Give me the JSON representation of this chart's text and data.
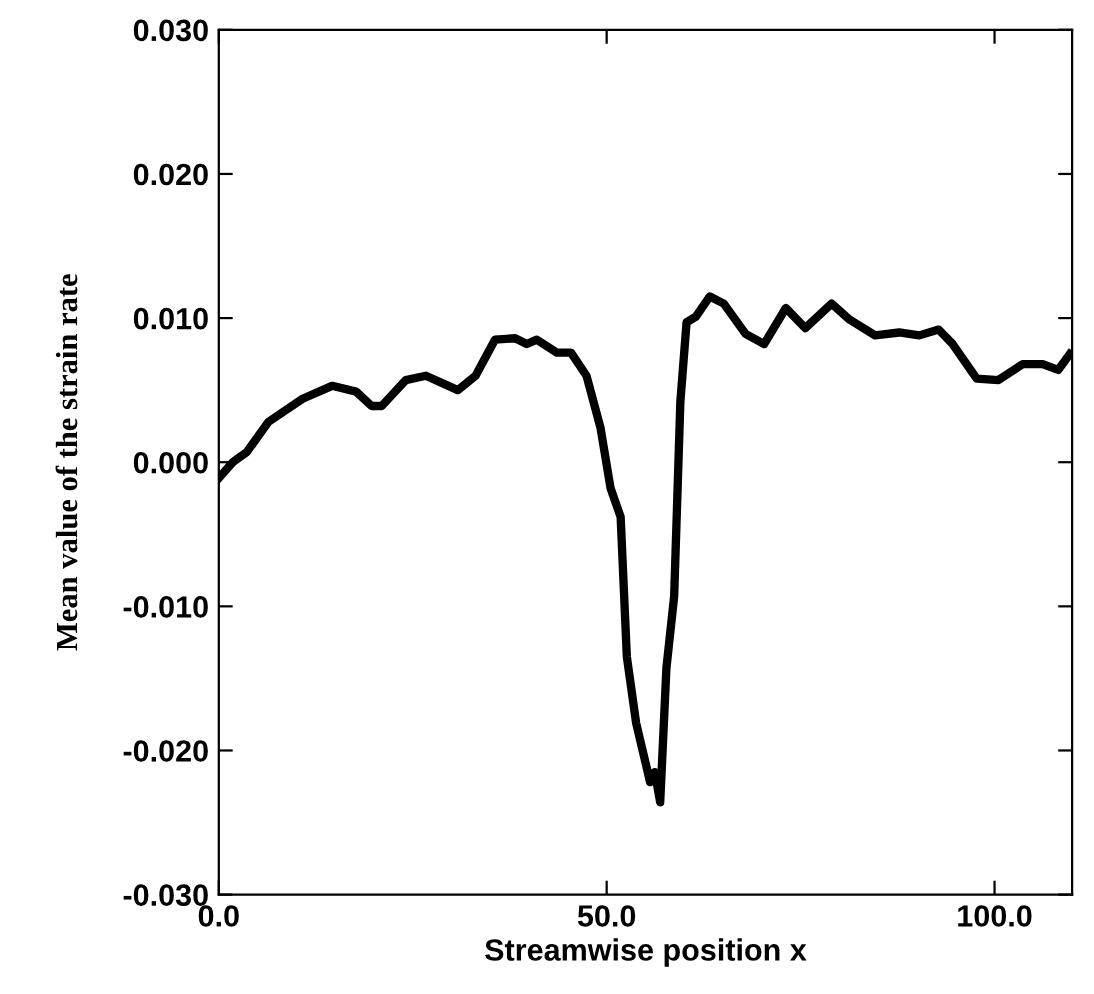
{
  "chart_data": {
    "type": "line",
    "xlabel": "Streamwise position x",
    "ylabel": "Mean value of the strain rate",
    "xlim": [
      0,
      110
    ],
    "xticks": [
      {
        "value": 0,
        "label": "0.0"
      },
      {
        "value": 50,
        "label": "50.0"
      },
      {
        "value": 100,
        "label": "100.0"
      }
    ],
    "ylim": [
      -0.03,
      0.03
    ],
    "yticks": [
      {
        "value": -0.03,
        "label": "-0.030"
      },
      {
        "value": -0.02,
        "label": "-0.020"
      },
      {
        "value": -0.01,
        "label": "-0.010"
      },
      {
        "value": 0,
        "label": "0.000"
      },
      {
        "value": 0.01,
        "label": "0.010"
      },
      {
        "value": 0.02,
        "label": "0.020"
      },
      {
        "value": 0.03,
        "label": "0.030"
      }
    ],
    "grid": false,
    "marker": "none",
    "line_style": "solid",
    "series": [
      {
        "color": "#000000",
        "x": [
          0,
          1.8,
          3.6,
          6.4,
          10.8,
          14.6,
          17.7,
          19.7,
          21.0,
          24.1,
          26.7,
          30.8,
          33.1,
          35.6,
          38.2,
          39.7,
          41.0,
          43.6,
          45.4,
          47.4,
          49.2,
          50.5,
          51.8,
          52.6,
          53.8,
          55.6,
          56.2,
          56.9,
          57.7,
          58.7,
          59.5,
          60.3,
          61.5,
          63.3,
          65.1,
          67.9,
          70.3,
          73.1,
          75.6,
          79.0,
          81.3,
          84.6,
          87.7,
          90.3,
          92.8,
          94.6,
          97.7,
          100.5,
          103.6,
          106.2,
          108.2,
          109.7
        ],
        "values": [
          -0.0011,
          0.0,
          0.0007,
          0.0028,
          0.0044,
          0.0053,
          0.0049,
          0.0039,
          0.0039,
          0.0057,
          0.006,
          0.005,
          0.006,
          0.0085,
          0.0086,
          0.0082,
          0.0085,
          0.0076,
          0.0076,
          0.006,
          0.0024,
          -0.0018,
          -0.0038,
          -0.0135,
          -0.0181,
          -0.0222,
          -0.0215,
          -0.0236,
          -0.0143,
          -0.0093,
          0.0042,
          0.0097,
          0.0101,
          0.0115,
          0.011,
          0.0089,
          0.0082,
          0.0107,
          0.0093,
          0.011,
          0.0099,
          0.0088,
          0.009,
          0.0088,
          0.0092,
          0.0082,
          0.0058,
          0.0057,
          0.0068,
          0.0068,
          0.0064,
          0.0075
        ]
      }
    ]
  }
}
